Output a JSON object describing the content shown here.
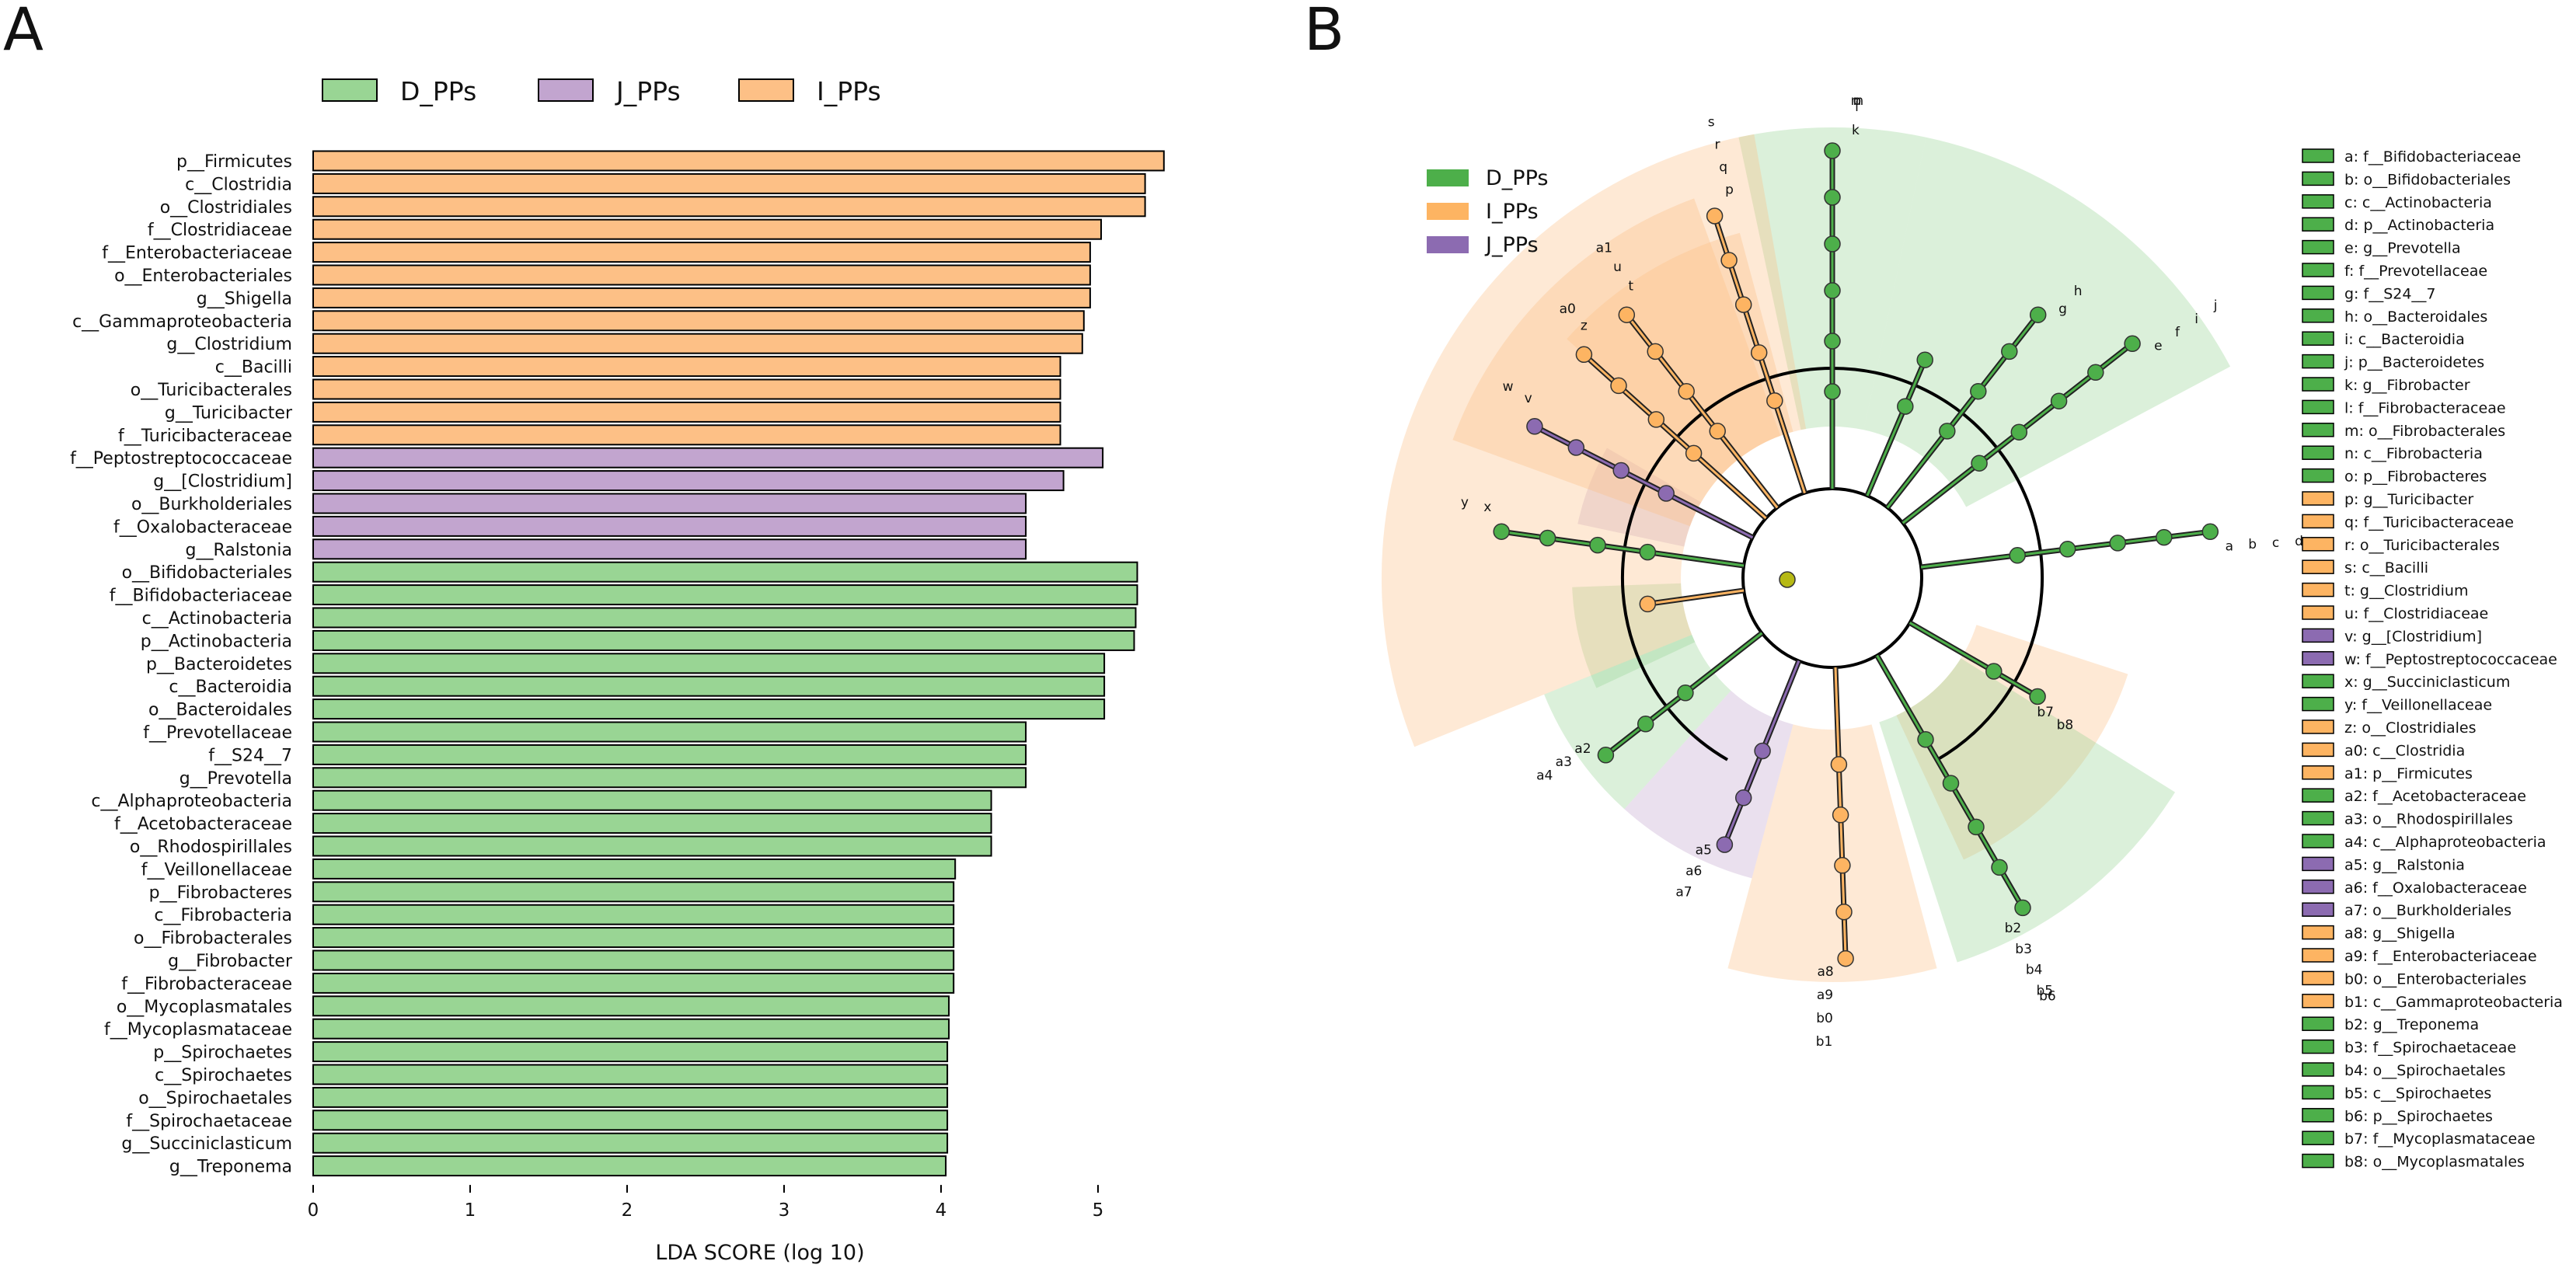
{
  "panel_labels": {
    "a": "A",
    "b": "B"
  },
  "colors": {
    "D_PPs": "#99d594",
    "J_PPs": "#c2a5cf",
    "I_PPs": "#fdc086",
    "D_dark": "#4daf4a",
    "J_dark": "#8c6bb1",
    "I_dark": "#fdb462",
    "bg": "#ffffff",
    "line": "#000000",
    "olive": "#b6b914"
  },
  "chart_data": [
    {
      "type": "bar",
      "orientation": "horizontal",
      "title": "",
      "xlabel": "LDA SCORE (log 10)",
      "ylabel": "",
      "xlim": [
        0,
        5.5
      ],
      "xticks": [
        "0",
        "1",
        "2",
        "3",
        "4",
        "5"
      ],
      "legend": {
        "placement": "top",
        "entries": [
          "D_PPs",
          "J_PPs",
          "I_PPs"
        ]
      },
      "bars": [
        {
          "label": "p__Firmicutes",
          "value": 5.42,
          "group": "I_PPs"
        },
        {
          "label": "c__Clostridia",
          "value": 5.3,
          "group": "I_PPs"
        },
        {
          "label": "o__Clostridiales",
          "value": 5.3,
          "group": "I_PPs"
        },
        {
          "label": "f__Clostridiaceae",
          "value": 5.02,
          "group": "I_PPs"
        },
        {
          "label": "f__Enterobacteriaceae",
          "value": 4.95,
          "group": "I_PPs"
        },
        {
          "label": "o__Enterobacteriales",
          "value": 4.95,
          "group": "I_PPs"
        },
        {
          "label": "g__Shigella",
          "value": 4.95,
          "group": "I_PPs"
        },
        {
          "label": "c__Gammaproteobacteria",
          "value": 4.91,
          "group": "I_PPs"
        },
        {
          "label": "g__Clostridium",
          "value": 4.9,
          "group": "I_PPs"
        },
        {
          "label": "c__Bacilli",
          "value": 4.76,
          "group": "I_PPs"
        },
        {
          "label": "o__Turicibacterales",
          "value": 4.76,
          "group": "I_PPs"
        },
        {
          "label": "g__Turicibacter",
          "value": 4.76,
          "group": "I_PPs"
        },
        {
          "label": "f__Turicibacteraceae",
          "value": 4.76,
          "group": "I_PPs"
        },
        {
          "label": "f__Peptostreptococcaceae",
          "value": 5.03,
          "group": "J_PPs"
        },
        {
          "label": "g__[Clostridium]",
          "value": 4.78,
          "group": "J_PPs"
        },
        {
          "label": "o__Burkholderiales",
          "value": 4.54,
          "group": "J_PPs"
        },
        {
          "label": "f__Oxalobacteraceae",
          "value": 4.54,
          "group": "J_PPs"
        },
        {
          "label": "g__Ralstonia",
          "value": 4.54,
          "group": "J_PPs"
        },
        {
          "label": "o__Bifidobacteriales",
          "value": 5.25,
          "group": "D_PPs"
        },
        {
          "label": "f__Bifidobacteriaceae",
          "value": 5.25,
          "group": "D_PPs"
        },
        {
          "label": "c__Actinobacteria",
          "value": 5.24,
          "group": "D_PPs"
        },
        {
          "label": "p__Actinobacteria",
          "value": 5.23,
          "group": "D_PPs"
        },
        {
          "label": "p__Bacteroidetes",
          "value": 5.04,
          "group": "D_PPs"
        },
        {
          "label": "c__Bacteroidia",
          "value": 5.04,
          "group": "D_PPs"
        },
        {
          "label": "o__Bacteroidales",
          "value": 5.04,
          "group": "D_PPs"
        },
        {
          "label": "f__Prevotellaceae",
          "value": 4.54,
          "group": "D_PPs"
        },
        {
          "label": "f__S24__7",
          "value": 4.54,
          "group": "D_PPs"
        },
        {
          "label": "g__Prevotella",
          "value": 4.54,
          "group": "D_PPs"
        },
        {
          "label": "c__Alphaproteobacteria",
          "value": 4.32,
          "group": "D_PPs"
        },
        {
          "label": "f__Acetobacteraceae",
          "value": 4.32,
          "group": "D_PPs"
        },
        {
          "label": "o__Rhodospirillales",
          "value": 4.32,
          "group": "D_PPs"
        },
        {
          "label": "f__Veillonellaceae",
          "value": 4.09,
          "group": "D_PPs"
        },
        {
          "label": "p__Fibrobacteres",
          "value": 4.08,
          "group": "D_PPs"
        },
        {
          "label": "c__Fibrobacteria",
          "value": 4.08,
          "group": "D_PPs"
        },
        {
          "label": "o__Fibrobacterales",
          "value": 4.08,
          "group": "D_PPs"
        },
        {
          "label": "g__Fibrobacter",
          "value": 4.08,
          "group": "D_PPs"
        },
        {
          "label": "f__Fibrobacteraceae",
          "value": 4.08,
          "group": "D_PPs"
        },
        {
          "label": "o__Mycoplasmatales",
          "value": 4.05,
          "group": "D_PPs"
        },
        {
          "label": "f__Mycoplasmataceae",
          "value": 4.05,
          "group": "D_PPs"
        },
        {
          "label": "p__Spirochaetes",
          "value": 4.04,
          "group": "D_PPs"
        },
        {
          "label": "c__Spirochaetes",
          "value": 4.04,
          "group": "D_PPs"
        },
        {
          "label": "o__Spirochaetales",
          "value": 4.04,
          "group": "D_PPs"
        },
        {
          "label": "f__Spirochaetaceae",
          "value": 4.04,
          "group": "D_PPs"
        },
        {
          "label": "g__Succiniclasticum",
          "value": 4.04,
          "group": "D_PPs"
        },
        {
          "label": "g__Treponema",
          "value": 4.03,
          "group": "D_PPs"
        }
      ]
    },
    {
      "type": "cladogram",
      "title": "",
      "legend": {
        "placement": "top-left",
        "entries": [
          "D_PPs",
          "I_PPs",
          "J_PPs"
        ]
      },
      "sectors": [
        {
          "group": "D_PPs",
          "from": -12,
          "to": 12,
          "depth": 6
        },
        {
          "group": "D_PPs",
          "from": 12,
          "to": 62,
          "depth": 6
        },
        {
          "group": "I_PPs",
          "from": 108,
          "to": 155,
          "depth": 3
        },
        {
          "group": "D_PPs",
          "from": 122,
          "to": 162,
          "depth": 5
        },
        {
          "group": "I_PPs",
          "from": 165,
          "to": 195,
          "depth": 5
        },
        {
          "group": "J_PPs",
          "from": 195,
          "to": 222,
          "depth": 3
        },
        {
          "group": "D_PPs",
          "from": 222,
          "to": 248,
          "depth": 3
        },
        {
          "group": "D_PPs",
          "from": 245,
          "to": 268,
          "depth": 2
        },
        {
          "group": "J_PPs",
          "from": 282,
          "to": 300,
          "depth": 2
        },
        {
          "group": "I_PPs",
          "from": 248,
          "to": 350,
          "depth": 6
        },
        {
          "group": "I_PPs",
          "from": 290,
          "to": 340,
          "depth": 5
        },
        {
          "group": "I_PPs",
          "from": 312,
          "to": 345,
          "depth": 4
        }
      ],
      "branches": [
        {
          "angle": 0,
          "depth": 6,
          "group": "D_PPs",
          "labels": [
            "k",
            "l",
            "m",
            "n",
            "o"
          ]
        },
        {
          "angle": 23,
          "depth": 2,
          "group": "D_PPs",
          "labels": []
        },
        {
          "angle": 38,
          "depth": 4,
          "group": "D_PPs",
          "labels": [
            "g",
            "h"
          ]
        },
        {
          "angle": 52,
          "depth": 5,
          "group": "D_PPs",
          "labels": [
            "e",
            "f",
            "i",
            "j"
          ]
        },
        {
          "angle": 83,
          "depth": 5,
          "group": "D_PPs",
          "labels": [
            "a",
            "b",
            "c",
            "d"
          ]
        },
        {
          "angle": 120,
          "depth": 2,
          "group": "D_PPs",
          "labels": [
            "b7",
            "b8"
          ]
        },
        {
          "angle": 150,
          "depth": 5,
          "group": "D_PPs",
          "labels": [
            "b2",
            "b3",
            "b4",
            "b5",
            "b6"
          ]
        },
        {
          "angle": 178,
          "depth": 5,
          "group": "I_PPs",
          "labels": [
            "a8",
            "a9",
            "b0",
            "b1"
          ]
        },
        {
          "angle": 202,
          "depth": 3,
          "group": "J_PPs",
          "labels": [
            "a5",
            "a6",
            "a7"
          ]
        },
        {
          "angle": 232,
          "depth": 3,
          "group": "D_PPs",
          "labels": [
            "a2",
            "a3",
            "a4"
          ]
        },
        {
          "angle": 262,
          "depth": 1,
          "group": "I_PPs",
          "labels": []
        },
        {
          "angle": 278,
          "depth": 4,
          "group": "D_PPs",
          "labels": [
            "x",
            "y"
          ]
        },
        {
          "angle": 297,
          "depth": 4,
          "group": "J_PPs",
          "labels": [
            "v",
            "w"
          ]
        },
        {
          "angle": 312,
          "depth": 4,
          "group": "I_PPs",
          "labels": [
            "z",
            "a0"
          ]
        },
        {
          "angle": 322,
          "depth": 4,
          "group": "I_PPs",
          "labels": [
            "t",
            "u",
            "a1"
          ]
        },
        {
          "angle": 342,
          "depth": 5,
          "group": "I_PPs",
          "labels": [
            "p",
            "q",
            "r",
            "s"
          ]
        }
      ],
      "key_list": [
        {
          "text": "a: f__Bifidobacteriaceae",
          "group": "D_PPs"
        },
        {
          "text": "b: o__Bifidobacteriales",
          "group": "D_PPs"
        },
        {
          "text": "c: c__Actinobacteria",
          "group": "D_PPs"
        },
        {
          "text": "d: p__Actinobacteria",
          "group": "D_PPs"
        },
        {
          "text": "e: g__Prevotella",
          "group": "D_PPs"
        },
        {
          "text": "f: f__Prevotellaceae",
          "group": "D_PPs"
        },
        {
          "text": "g: f__S24__7",
          "group": "D_PPs"
        },
        {
          "text": "h: o__Bacteroidales",
          "group": "D_PPs"
        },
        {
          "text": "i: c__Bacteroidia",
          "group": "D_PPs"
        },
        {
          "text": "j: p__Bacteroidetes",
          "group": "D_PPs"
        },
        {
          "text": "k: g__Fibrobacter",
          "group": "D_PPs"
        },
        {
          "text": "l: f__Fibrobacteraceae",
          "group": "D_PPs"
        },
        {
          "text": "m: o__Fibrobacterales",
          "group": "D_PPs"
        },
        {
          "text": "n: c__Fibrobacteria",
          "group": "D_PPs"
        },
        {
          "text": "o: p__Fibrobacteres",
          "group": "D_PPs"
        },
        {
          "text": "p: g__Turicibacter",
          "group": "I_PPs"
        },
        {
          "text": "q: f__Turicibacteraceae",
          "group": "I_PPs"
        },
        {
          "text": "r: o__Turicibacterales",
          "group": "I_PPs"
        },
        {
          "text": "s: c__Bacilli",
          "group": "I_PPs"
        },
        {
          "text": "t: g__Clostridium",
          "group": "I_PPs"
        },
        {
          "text": "u: f__Clostridiaceae",
          "group": "I_PPs"
        },
        {
          "text": "v: g__[Clostridium]",
          "group": "J_PPs"
        },
        {
          "text": "w: f__Peptostreptococcaceae",
          "group": "J_PPs"
        },
        {
          "text": "x: g__Succiniclasticum",
          "group": "D_PPs"
        },
        {
          "text": "y: f__Veillonellaceae",
          "group": "D_PPs"
        },
        {
          "text": "z: o__Clostridiales",
          "group": "I_PPs"
        },
        {
          "text": "a0: c__Clostridia",
          "group": "I_PPs"
        },
        {
          "text": "a1: p__Firmicutes",
          "group": "I_PPs"
        },
        {
          "text": "a2: f__Acetobacteraceae",
          "group": "D_PPs"
        },
        {
          "text": "a3: o__Rhodospirillales",
          "group": "D_PPs"
        },
        {
          "text": "a4: c__Alphaproteobacteria",
          "group": "D_PPs"
        },
        {
          "text": "a5: g__Ralstonia",
          "group": "J_PPs"
        },
        {
          "text": "a6: f__Oxalobacteraceae",
          "group": "J_PPs"
        },
        {
          "text": "a7: o__Burkholderiales",
          "group": "J_PPs"
        },
        {
          "text": "a8: g__Shigella",
          "group": "I_PPs"
        },
        {
          "text": "a9: f__Enterobacteriaceae",
          "group": "I_PPs"
        },
        {
          "text": "b0: o__Enterobacteriales",
          "group": "I_PPs"
        },
        {
          "text": "b1: c__Gammaproteobacteria",
          "group": "I_PPs"
        },
        {
          "text": "b2: g__Treponema",
          "group": "D_PPs"
        },
        {
          "text": "b3: f__Spirochaetaceae",
          "group": "D_PPs"
        },
        {
          "text": "b4: o__Spirochaetales",
          "group": "D_PPs"
        },
        {
          "text": "b5: c__Spirochaetes",
          "group": "D_PPs"
        },
        {
          "text": "b6: p__Spirochaetes",
          "group": "D_PPs"
        },
        {
          "text": "b7: f__Mycoplasmataceae",
          "group": "D_PPs"
        },
        {
          "text": "b8: o__Mycoplasmatales",
          "group": "D_PPs"
        }
      ]
    }
  ]
}
